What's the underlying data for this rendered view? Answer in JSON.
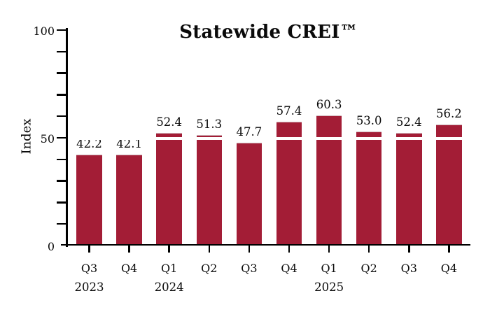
{
  "chart_data": {
    "type": "bar",
    "title": "Statewide CREI™",
    "xlabel": "",
    "ylabel": "Index",
    "categories": [
      "Q3",
      "Q4",
      "Q1",
      "Q2",
      "Q3",
      "Q4",
      "Q1",
      "Q2",
      "Q3",
      "Q4"
    ],
    "values": [
      42.2,
      42.1,
      52.4,
      51.3,
      47.7,
      57.4,
      60.3,
      53.0,
      52.4,
      56.2
    ],
    "value_labels": [
      "42.2",
      "42.1",
      "52.4",
      "51.3",
      "47.7",
      "57.4",
      "60.3",
      "53.0",
      "52.4",
      "56.2"
    ],
    "year_labels": [
      {
        "label": "2023",
        "bar_index": 0
      },
      {
        "label": "2024",
        "bar_index": 2
      },
      {
        "label": "2025",
        "bar_index": 6
      }
    ],
    "ylim": [
      0,
      100
    ],
    "y_axis": {
      "min": 0,
      "max": 100,
      "minor_tick_step": 10,
      "tick_labels": [
        {
          "value": 0,
          "label": "0"
        },
        {
          "value": 50,
          "label": "50"
        },
        {
          "value": 100,
          "label": "100"
        }
      ]
    },
    "reference_line": 50,
    "grid": false,
    "legend": false,
    "colors": {
      "bar": "#A31D36",
      "bar_top_edge": "#CEB4B9",
      "reference_line": "#FFFFFF",
      "axis": "#000000",
      "text": "#111111",
      "background": "#FFFFFF"
    }
  }
}
